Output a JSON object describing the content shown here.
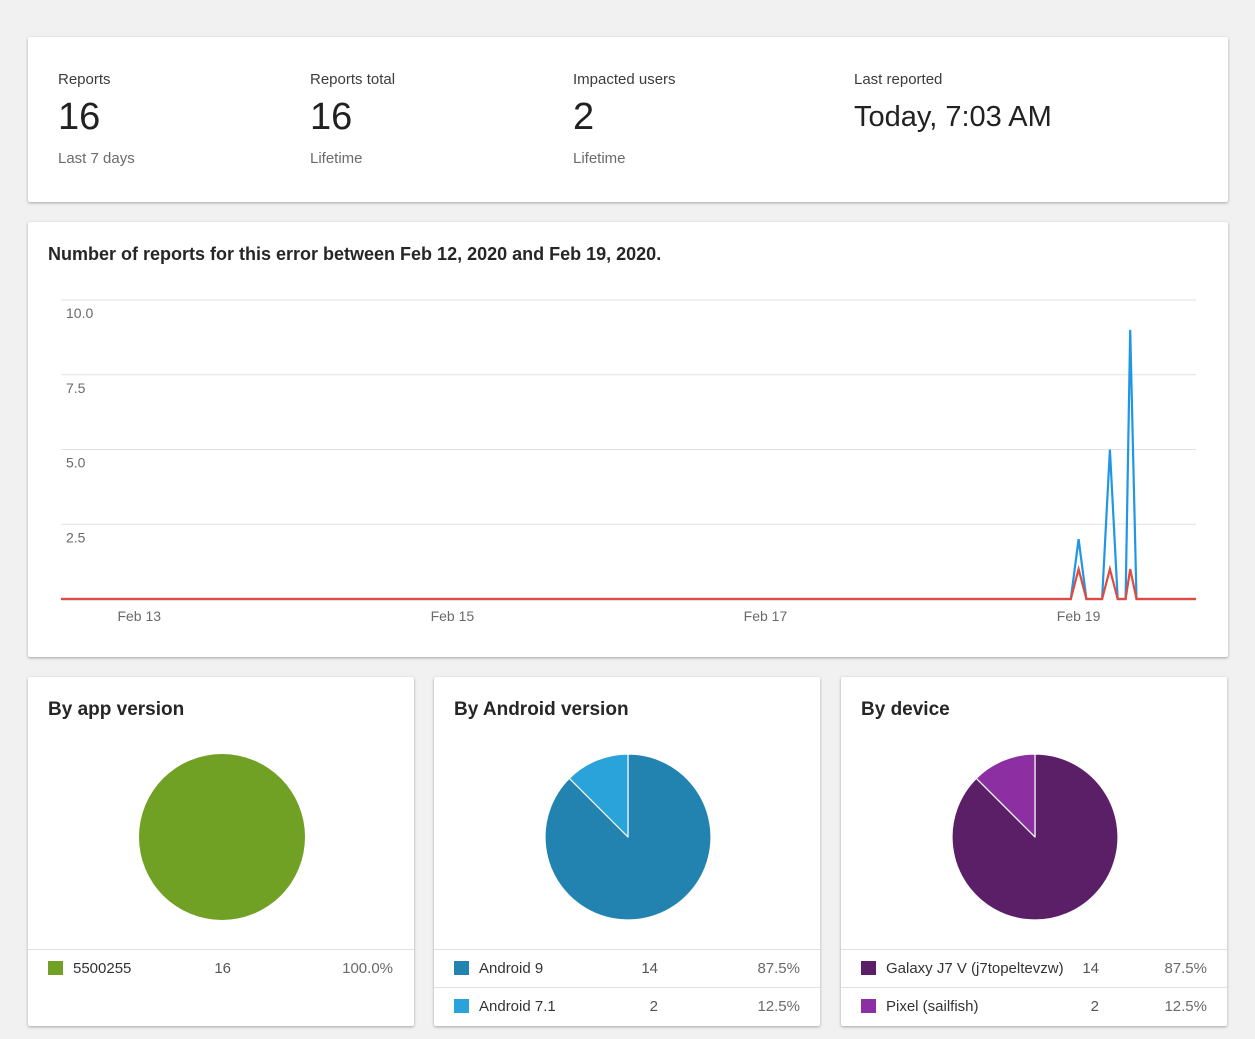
{
  "stats": [
    {
      "label": "Reports",
      "value": "16",
      "sub": "Last 7 days"
    },
    {
      "label": "Reports total",
      "value": "16",
      "sub": "Lifetime"
    },
    {
      "label": "Impacted users",
      "value": "2",
      "sub": "Lifetime"
    },
    {
      "label": "Last reported",
      "value": "Today, 7:03 AM",
      "sub": ""
    }
  ],
  "chart_title": "Number of reports for this error between Feb 12, 2020 and Feb 19, 2020.",
  "chart_data": {
    "type": "line",
    "title": "Number of reports for this error between Feb 12, 2020 and Feb 19, 2020.",
    "xlabel": "",
    "ylabel": "",
    "ylim": [
      0,
      10
    ],
    "y_ticks": [
      "2.5",
      "5.0",
      "7.5",
      "10.0"
    ],
    "x_tick_labels": [
      "Feb 13",
      "Feb 15",
      "Feb 17",
      "Feb 19"
    ],
    "x_range_days": [
      0,
      7.25
    ],
    "x_tick_positions_days": [
      0.5,
      2.5,
      4.5,
      6.5
    ],
    "grid": true,
    "series": [
      {
        "color": "#2196e6",
        "points": [
          [
            0,
            0
          ],
          [
            6.45,
            0
          ],
          [
            6.5,
            2
          ],
          [
            6.55,
            0
          ],
          [
            6.65,
            0
          ],
          [
            6.7,
            5
          ],
          [
            6.75,
            0
          ],
          [
            6.8,
            0
          ],
          [
            6.83,
            9
          ],
          [
            6.87,
            0
          ],
          [
            7.25,
            0
          ]
        ]
      },
      {
        "color": "#e04a3f",
        "points": [
          [
            0,
            0
          ],
          [
            6.45,
            0
          ],
          [
            6.5,
            1
          ],
          [
            6.55,
            0
          ],
          [
            6.65,
            0
          ],
          [
            6.7,
            1
          ],
          [
            6.75,
            0
          ],
          [
            6.8,
            0
          ],
          [
            6.83,
            1
          ],
          [
            6.87,
            0
          ],
          [
            7.25,
            0
          ]
        ]
      }
    ]
  },
  "pies": [
    {
      "title": "By app version",
      "items": [
        {
          "name": "5500255",
          "count": 16,
          "count_text": "16",
          "pct": "100.0%",
          "color": "#71a124"
        }
      ]
    },
    {
      "title": "By Android version",
      "items": [
        {
          "name": "Android 9",
          "count": 14,
          "count_text": "14",
          "pct": "87.5%",
          "color": "#2283b1"
        },
        {
          "name": "Android 7.1",
          "count": 2,
          "count_text": "2",
          "pct": "12.5%",
          "color": "#29a3d9"
        }
      ]
    },
    {
      "title": "By device",
      "items": [
        {
          "name": "Galaxy J7 V (j7topeltevzw)",
          "count": 14,
          "count_text": "14",
          "pct": "87.5%",
          "color": "#5b1f68"
        },
        {
          "name": "Pixel (sailfish)",
          "count": 2,
          "count_text": "2",
          "pct": "12.5%",
          "color": "#8b2fa3"
        }
      ]
    }
  ]
}
